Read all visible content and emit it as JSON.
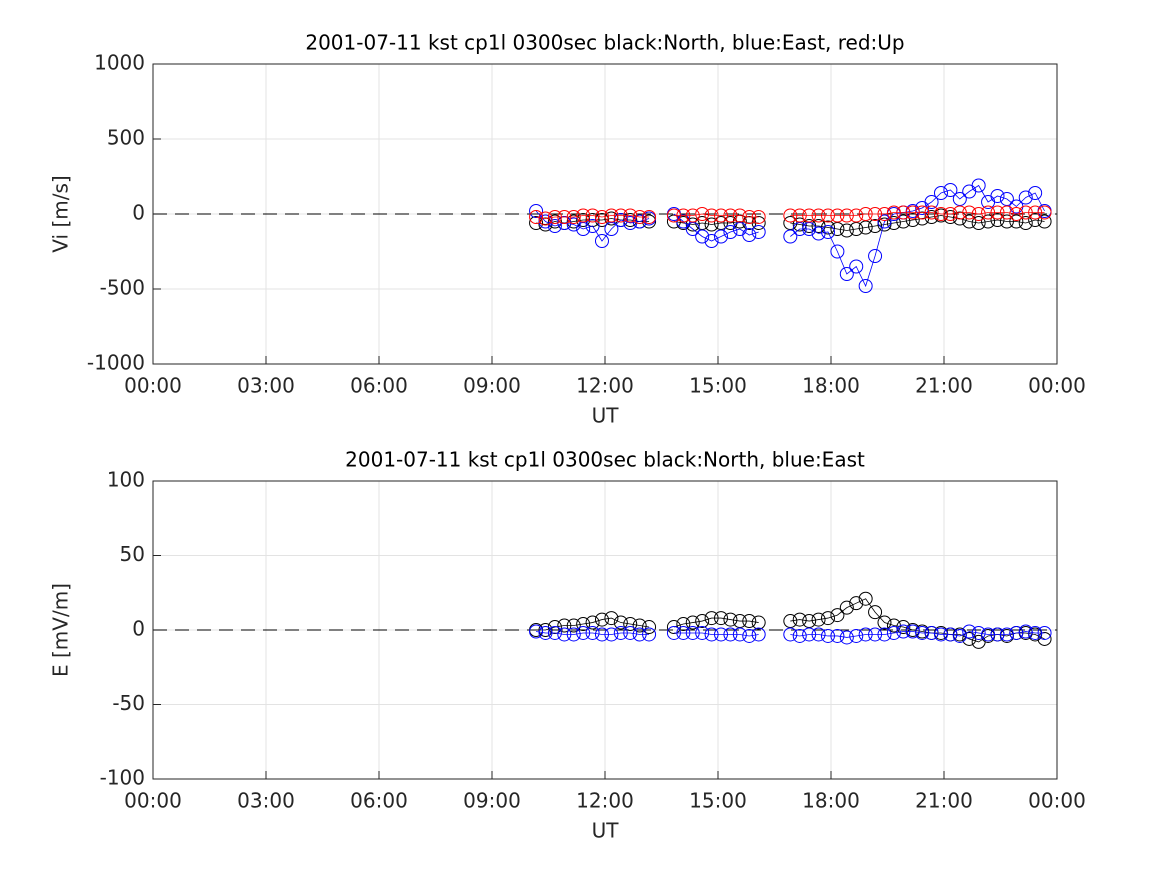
{
  "chart_data": [
    {
      "type": "line",
      "title": "2001-07-11 kst cp1l 0300sec black:North, blue:East, red:Up",
      "xlabel": "UT",
      "ylabel": "Vi [m/s]",
      "x": [
        10.17,
        10.42,
        10.67,
        10.92,
        11.17,
        11.42,
        11.67,
        11.92,
        12.17,
        12.42,
        12.67,
        12.92,
        13.17,
        13.5,
        13.83,
        14.08,
        14.33,
        14.58,
        14.83,
        15.08,
        15.33,
        15.58,
        15.83,
        16.08,
        16.5,
        16.92,
        17.17,
        17.42,
        17.67,
        17.92,
        18.17,
        18.42,
        18.67,
        18.92,
        19.17,
        19.42,
        19.67,
        19.92,
        20.17,
        20.42,
        20.67,
        20.92,
        21.17,
        21.42,
        21.67,
        21.92,
        22.17,
        22.42,
        22.67,
        22.92,
        23.17,
        23.42,
        23.67
      ],
      "xlim": [
        0,
        24
      ],
      "xticks": [
        {
          "value": 0,
          "label": "00:00"
        },
        {
          "value": 3,
          "label": "03:00"
        },
        {
          "value": 6,
          "label": "06:00"
        },
        {
          "value": 9,
          "label": "09:00"
        },
        {
          "value": 12,
          "label": "12:00"
        },
        {
          "value": 15,
          "label": "15:00"
        },
        {
          "value": 18,
          "label": "18:00"
        },
        {
          "value": 21,
          "label": "21:00"
        },
        {
          "value": 24,
          "label": "00:00"
        }
      ],
      "ylim": [
        -1000,
        1000
      ],
      "yticks": [
        -1000,
        -500,
        0,
        500,
        1000
      ],
      "grid": true,
      "series": [
        {
          "color": "#000000",
          "values": [
            -60,
            -70,
            -50,
            -60,
            -50,
            -40,
            -40,
            -40,
            -30,
            -40,
            -40,
            -50,
            -50,
            null,
            -50,
            -60,
            -70,
            -60,
            -70,
            -60,
            -60,
            -50,
            -60,
            -60,
            null,
            -60,
            -70,
            -80,
            -80,
            -90,
            -100,
            -110,
            -100,
            -90,
            -80,
            -70,
            -60,
            -50,
            -40,
            -30,
            -20,
            -10,
            -20,
            -30,
            -50,
            -60,
            -50,
            -40,
            -50,
            -50,
            -60,
            -40,
            -50
          ]
        },
        {
          "color": "#0000ff",
          "values": [
            20,
            -50,
            -80,
            -60,
            -70,
            -100,
            -80,
            -180,
            -100,
            -40,
            -60,
            -50,
            -30,
            null,
            0,
            -50,
            -100,
            -150,
            -180,
            -150,
            -120,
            -100,
            -140,
            -120,
            null,
            -150,
            -100,
            -100,
            -130,
            -120,
            -250,
            -400,
            -350,
            -480,
            -280,
            -50,
            0,
            10,
            20,
            40,
            80,
            140,
            160,
            100,
            150,
            190,
            80,
            120,
            100,
            50,
            110,
            140,
            20
          ]
        },
        {
          "color": "#ff0000",
          "values": [
            -20,
            -30,
            -20,
            -20,
            -20,
            -10,
            -10,
            -20,
            -10,
            -10,
            -10,
            -20,
            -20,
            null,
            -10,
            -10,
            -10,
            0,
            -10,
            -10,
            -10,
            -10,
            -20,
            -20,
            null,
            -10,
            -10,
            -10,
            -10,
            -10,
            -10,
            -10,
            -10,
            0,
            0,
            0,
            10,
            10,
            10,
            10,
            10,
            0,
            0,
            10,
            10,
            0,
            10,
            10,
            10,
            0,
            10,
            10,
            10
          ]
        }
      ]
    },
    {
      "type": "line",
      "title": "2001-07-11 kst cp1l 0300sec black:North, blue:East",
      "xlabel": "UT",
      "ylabel": "E [mV/m]",
      "x": [
        10.17,
        10.42,
        10.67,
        10.92,
        11.17,
        11.42,
        11.67,
        11.92,
        12.17,
        12.42,
        12.67,
        12.92,
        13.17,
        13.5,
        13.83,
        14.08,
        14.33,
        14.58,
        14.83,
        15.08,
        15.33,
        15.58,
        15.83,
        16.08,
        16.5,
        16.92,
        17.17,
        17.42,
        17.67,
        17.92,
        18.17,
        18.42,
        18.67,
        18.92,
        19.17,
        19.42,
        19.67,
        19.92,
        20.17,
        20.42,
        20.67,
        20.92,
        21.17,
        21.42,
        21.67,
        21.92,
        22.17,
        22.42,
        22.67,
        22.92,
        23.17,
        23.42,
        23.67
      ],
      "xlim": [
        0,
        24
      ],
      "xticks": [
        {
          "value": 0,
          "label": "00:00"
        },
        {
          "value": 3,
          "label": "03:00"
        },
        {
          "value": 6,
          "label": "06:00"
        },
        {
          "value": 9,
          "label": "09:00"
        },
        {
          "value": 12,
          "label": "12:00"
        },
        {
          "value": 15,
          "label": "15:00"
        },
        {
          "value": 18,
          "label": "18:00"
        },
        {
          "value": 21,
          "label": "21:00"
        },
        {
          "value": 24,
          "label": "00:00"
        }
      ],
      "ylim": [
        -100,
        100
      ],
      "yticks": [
        -100,
        -50,
        0,
        50,
        100
      ],
      "grid": true,
      "series": [
        {
          "color": "#000000",
          "values": [
            0,
            0,
            2,
            3,
            3,
            4,
            5,
            7,
            8,
            5,
            4,
            3,
            2,
            null,
            2,
            4,
            5,
            6,
            8,
            8,
            7,
            6,
            6,
            5,
            null,
            6,
            7,
            6,
            7,
            8,
            10,
            15,
            18,
            21,
            12,
            5,
            3,
            2,
            0,
            -1,
            -2,
            -2,
            -3,
            -3,
            -6,
            -8,
            -4,
            -3,
            -4,
            -2,
            -2,
            -3,
            -6
          ]
        },
        {
          "color": "#0000ff",
          "values": [
            -1,
            -2,
            -2,
            -3,
            -3,
            -2,
            -2,
            -3,
            -3,
            -2,
            -2,
            -3,
            -3,
            null,
            -2,
            -2,
            -2,
            -2,
            -3,
            -3,
            -3,
            -3,
            -4,
            -3,
            null,
            -3,
            -4,
            -3,
            -3,
            -4,
            -4,
            -5,
            -4,
            -3,
            -3,
            -3,
            -2,
            -1,
            -1,
            -2,
            -2,
            -3,
            -3,
            -4,
            -1,
            -2,
            -3,
            -3,
            -3,
            -2,
            -1,
            -2,
            -2
          ]
        }
      ]
    }
  ]
}
